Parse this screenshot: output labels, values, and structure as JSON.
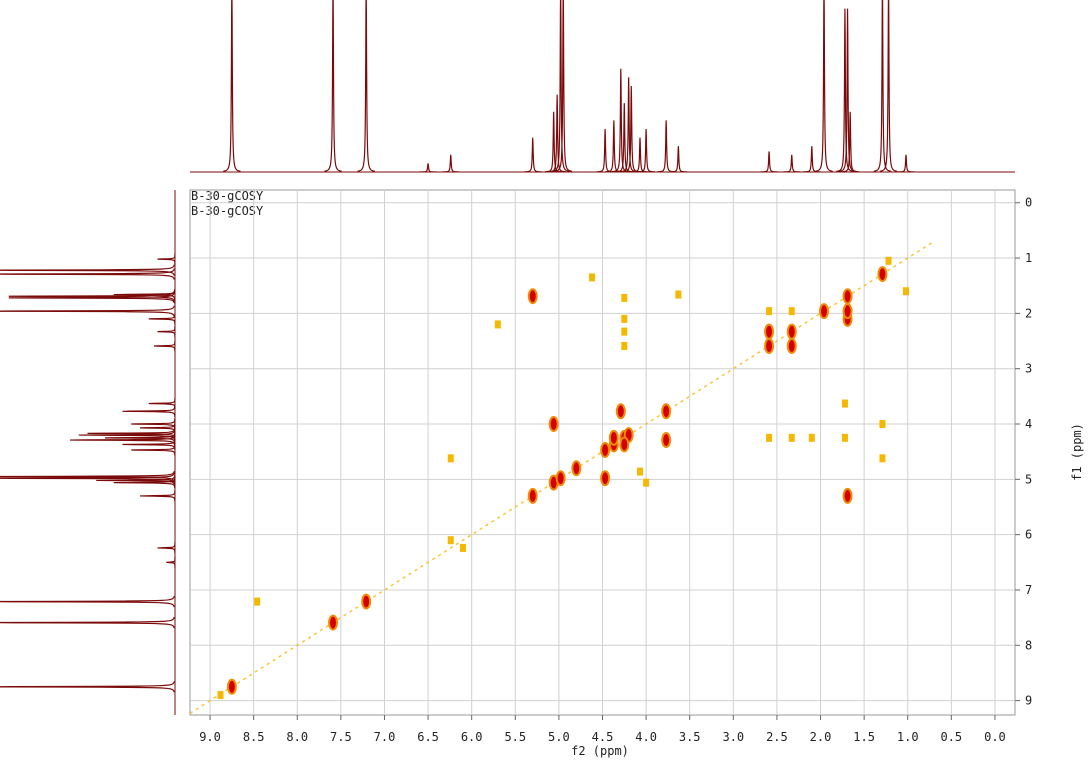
{
  "chart_data": {
    "type": "nmr2d",
    "labels": [
      "B-30-gCOSY",
      "B-30-gCOSY"
    ],
    "xlabel": "f2 (ppm)",
    "ylabel": "f1 (ppm)",
    "xlim": [
      9.23,
      -0.23
    ],
    "ylim": [
      -0.23,
      9.26
    ],
    "xticks": [
      {
        "value": 9,
        "label": "9.0"
      },
      {
        "value": 8.5,
        "label": "8.5"
      },
      {
        "value": 8,
        "label": "8.0"
      },
      {
        "value": 7.5,
        "label": "7.5"
      },
      {
        "value": 7,
        "label": "7.0"
      },
      {
        "value": 6.5,
        "label": "6.5"
      },
      {
        "value": 6,
        "label": "6.0"
      },
      {
        "value": 5.5,
        "label": "5.5"
      },
      {
        "value": 5,
        "label": "5.0"
      },
      {
        "value": 4.5,
        "label": "4.5"
      },
      {
        "value": 4,
        "label": "4.0"
      },
      {
        "value": 3.5,
        "label": "3.5"
      },
      {
        "value": 3,
        "label": "3.0"
      },
      {
        "value": 2.5,
        "label": "2.5"
      },
      {
        "value": 2,
        "label": "2.0"
      },
      {
        "value": 1.5,
        "label": "1.5"
      },
      {
        "value": 1,
        "label": "1.0"
      },
      {
        "value": 0.5,
        "label": "0.5"
      },
      {
        "value": 0,
        "label": "0.0"
      }
    ],
    "yticks": [
      0,
      1,
      2,
      3,
      4,
      5,
      6,
      7,
      8,
      9
    ],
    "grid": true,
    "projection": {
      "color": "#7b0a0a",
      "x": [
        8.75,
        7.59,
        7.21,
        6.5,
        6.24,
        5.3,
        5.06,
        5.02,
        4.98,
        4.95,
        4.47,
        4.37,
        4.29,
        4.25,
        4.2,
        4.17,
        4.07,
        4.0,
        3.77,
        3.63,
        2.59,
        2.33,
        2.1,
        1.96,
        1.72,
        1.69,
        1.66,
        1.29,
        1.22,
        1.02
      ],
      "values": [
        110,
        110,
        110,
        5,
        10,
        20,
        35,
        45,
        110,
        110,
        25,
        30,
        60,
        40,
        55,
        50,
        20,
        25,
        30,
        15,
        12,
        10,
        15,
        110,
        95,
        95,
        35,
        110,
        110,
        10
      ]
    },
    "series": [
      {
        "color": "#d40000",
        "x": [
          8.75,
          7.59,
          7.21,
          5.3,
          5.06,
          4.98,
          4.8,
          4.47,
          4.37,
          4.25,
          4.2,
          3.77,
          1.96,
          1.69,
          1.29,
          5.3,
          1.69,
          2.59,
          2.33,
          2.59,
          2.33,
          1.69,
          1.69,
          5.06,
          4.37,
          4.25,
          4.47,
          3.77,
          4.29
        ],
        "y": [
          8.75,
          7.59,
          7.21,
          5.3,
          5.06,
          4.98,
          4.8,
          4.47,
          4.37,
          4.25,
          4.2,
          3.77,
          1.96,
          1.69,
          1.29,
          1.69,
          5.3,
          2.33,
          2.33,
          2.59,
          2.59,
          2.1,
          1.96,
          4.0,
          4.25,
          4.37,
          4.98,
          4.29,
          3.77
        ]
      },
      {
        "color": "#f5b800",
        "x": [
          4.25,
          4.25,
          4.25,
          4.25,
          2.59,
          2.33,
          2.1,
          1.72,
          4.62,
          3.63,
          6.24,
          6.24,
          6.1,
          5.7,
          8.46,
          1.29,
          1.29,
          4.0,
          4.07,
          1.02,
          1.72,
          1.22,
          2.59,
          2.33,
          8.88
        ],
        "y": [
          1.72,
          2.1,
          2.33,
          2.59,
          4.25,
          4.25,
          4.25,
          4.25,
          1.35,
          1.66,
          4.62,
          6.1,
          6.24,
          2.2,
          7.21,
          4.62,
          4.0,
          5.06,
          4.86,
          1.6,
          3.63,
          1.05,
          1.96,
          1.96,
          8.9
        ]
      }
    ]
  }
}
